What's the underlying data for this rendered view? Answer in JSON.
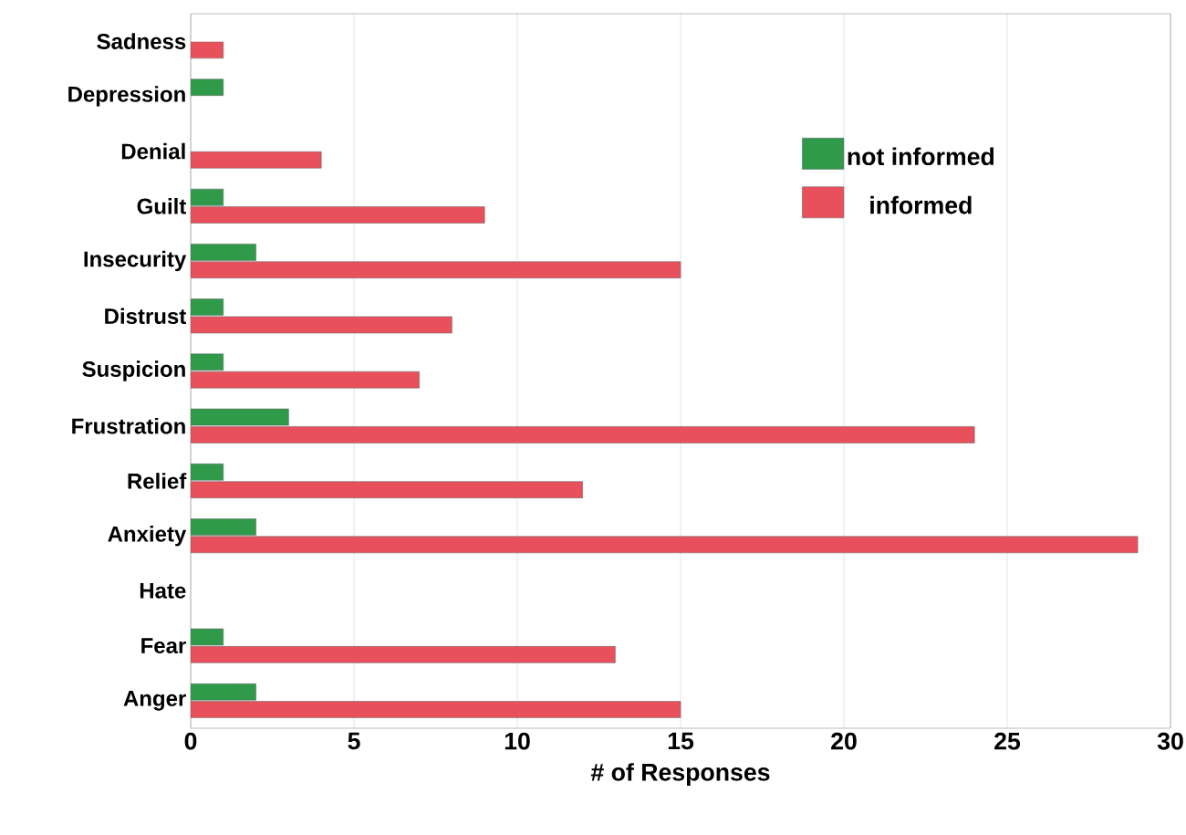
{
  "chart_data": {
    "type": "bar",
    "orientation": "horizontal",
    "xlabel": "# of Responses",
    "categories": [
      "Sadness",
      "Depression",
      "Denial",
      "Guilt",
      "Insecurity",
      "Distrust",
      "Suspicion",
      "Frustration",
      "Relief",
      "Anxiety",
      "Hate",
      "Fear",
      "Anger"
    ],
    "series": [
      {
        "name": "not informed",
        "color": "#2e9a4a",
        "values": [
          null,
          1,
          null,
          1,
          2,
          1,
          1,
          3,
          1,
          2,
          null,
          1,
          2
        ]
      },
      {
        "name": "informed",
        "color": "#e8505b",
        "values": [
          1,
          null,
          4,
          9,
          15,
          8,
          7,
          24,
          12,
          29,
          null,
          13,
          15
        ]
      }
    ],
    "xlim": [
      0,
      30
    ],
    "xticks": [
      0,
      5,
      10,
      15,
      20,
      25,
      30
    ],
    "grid": "x",
    "legend": "right"
  }
}
